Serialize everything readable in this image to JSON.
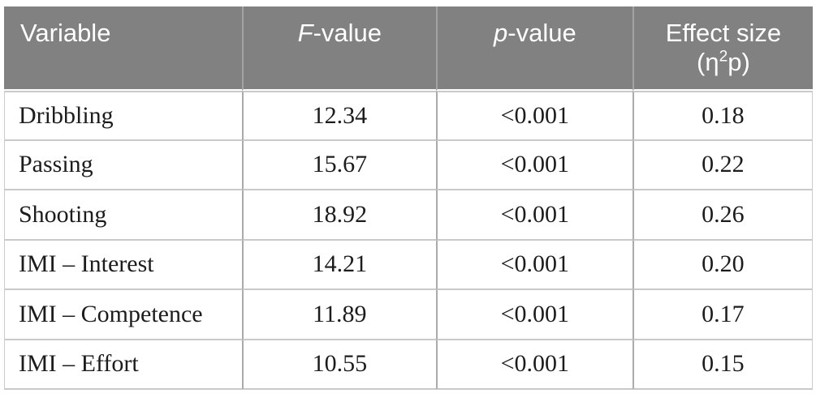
{
  "colors": {
    "header_background": "#818181",
    "header_text": "#ffffff",
    "body_text": "#1c1c1c",
    "row_divider": "#c9c9c9",
    "column_divider": "#ababab"
  },
  "table": {
    "header": {
      "variable": "Variable",
      "f_italic": "F",
      "f_rest": "-value",
      "p_italic": "p",
      "p_rest": "-value",
      "effect_line1": "Effect size",
      "effect_prefix": "(η",
      "effect_sup": "2",
      "effect_suffix": "p)"
    },
    "rows": [
      {
        "variable": "Dribbling",
        "f_value": "12.34",
        "p_value": "<0.001",
        "effect_size": "0.18"
      },
      {
        "variable": "Passing",
        "f_value": "15.67",
        "p_value": "<0.001",
        "effect_size": "0.22"
      },
      {
        "variable": "Shooting",
        "f_value": "18.92",
        "p_value": "<0.001",
        "effect_size": "0.26"
      },
      {
        "variable": "IMI – Interest",
        "f_value": "14.21",
        "p_value": "<0.001",
        "effect_size": "0.20"
      },
      {
        "variable": "IMI – Competence",
        "f_value": "11.89",
        "p_value": "<0.001",
        "effect_size": "0.17"
      },
      {
        "variable": "IMI – Effort",
        "f_value": "10.55",
        "p_value": "<0.001",
        "effect_size": "0.15"
      }
    ]
  }
}
